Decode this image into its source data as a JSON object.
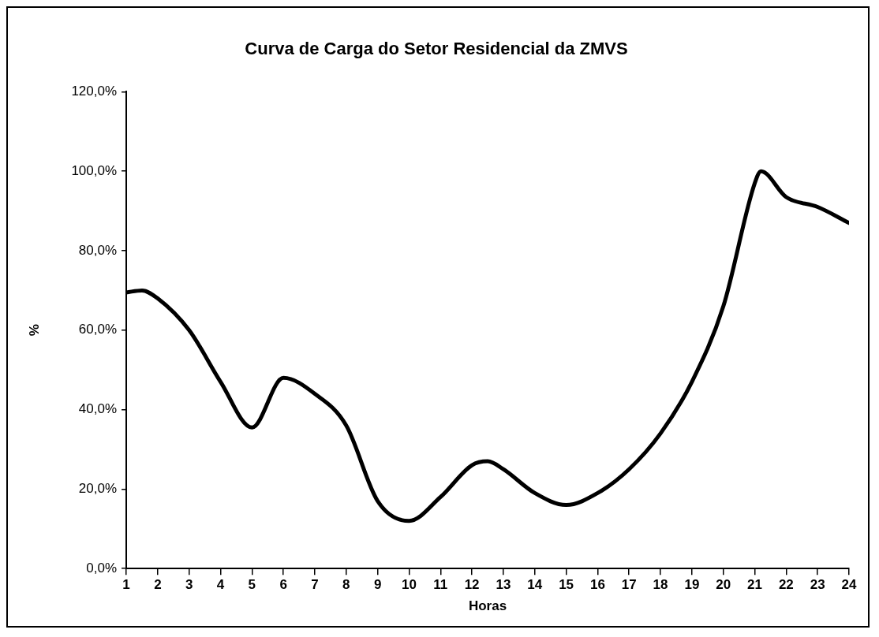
{
  "chart_data": {
    "type": "line",
    "title": "Curva de Carga do Setor Residencial da ZMVS",
    "xlabel": "Horas",
    "ylabel": "%",
    "series": [
      {
        "color": "#000000",
        "x": [
          1,
          1.5,
          2,
          3,
          4,
          5,
          6,
          7,
          8,
          9,
          10,
          11,
          12,
          12.5,
          13,
          14,
          15,
          16,
          17,
          18,
          19,
          20,
          21,
          21.2,
          22,
          23,
          24
        ],
        "values": [
          69.5,
          70,
          68,
          60,
          47,
          35.5,
          48,
          44,
          36,
          17,
          12,
          18,
          26,
          27,
          25,
          19,
          16,
          19,
          25,
          34,
          47,
          66,
          97,
          100,
          93.5,
          91,
          87
        ]
      }
    ],
    "xlim": [
      1,
      24
    ],
    "xticks": [
      1,
      2,
      3,
      4,
      5,
      6,
      7,
      8,
      9,
      10,
      11,
      12,
      13,
      14,
      15,
      16,
      17,
      18,
      19,
      20,
      21,
      22,
      23,
      24
    ],
    "ylim": [
      0,
      120
    ],
    "yticks": [
      {
        "value": 0,
        "label": "0,0%"
      },
      {
        "value": 20,
        "label": "20,0%"
      },
      {
        "value": 40,
        "label": "40,0%"
      },
      {
        "value": 60,
        "label": "60,0%"
      },
      {
        "value": 80,
        "label": "80,0%"
      },
      {
        "value": 100,
        "label": "100,0%"
      },
      {
        "value": 120,
        "label": "120,0%"
      }
    ],
    "grid": false,
    "legend": false,
    "marker": "none",
    "line_style": "solid"
  }
}
